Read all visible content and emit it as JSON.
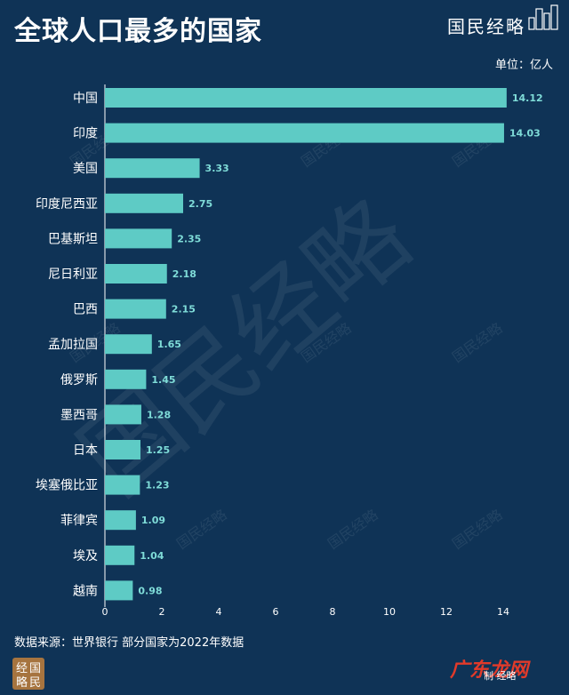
{
  "header": {
    "title": "全球人口最多的国家",
    "brand": "国民经略",
    "unit": "单位：亿人"
  },
  "footer": {
    "source": "数据来源：世界银行 部分国家为2022年数据",
    "brand": "制  经略",
    "corner_watermark": "广东龙网",
    "seal_text": "经国略民"
  },
  "watermark_text": "国民经略",
  "chart_data": {
    "type": "bar",
    "orientation": "horizontal",
    "title": "全球人口最多的国家",
    "unit": "单位：亿人",
    "categories": [
      "中国",
      "印度",
      "美国",
      "印度尼西亚",
      "巴基斯坦",
      "尼日利亚",
      "巴西",
      "孟加拉国",
      "俄罗斯",
      "墨西哥",
      "日本",
      "埃塞俄比亚",
      "菲律宾",
      "埃及",
      "越南"
    ],
    "values": [
      14.12,
      14.03,
      3.33,
      2.75,
      2.35,
      2.18,
      2.15,
      1.65,
      1.45,
      1.28,
      1.25,
      1.23,
      1.09,
      1.04,
      0.98
    ],
    "value_labels": [
      "14.12",
      "14.03",
      "3.33",
      "2.75",
      "2.35",
      "2.18",
      "2.15",
      "1.65",
      "1.45",
      "1.28",
      "1.25",
      "1.23",
      "1.09",
      "1.04",
      "0.98"
    ],
    "x_ticks": [
      "0",
      "2",
      "4",
      "6",
      "8",
      "10",
      "12",
      "14"
    ],
    "xlim": [
      0,
      14
    ],
    "grid": false,
    "colors": {
      "background": "#0f3356",
      "bar": "#5ecbc5",
      "value_label": "#7fdcd8",
      "axis": "#ffffff"
    }
  }
}
